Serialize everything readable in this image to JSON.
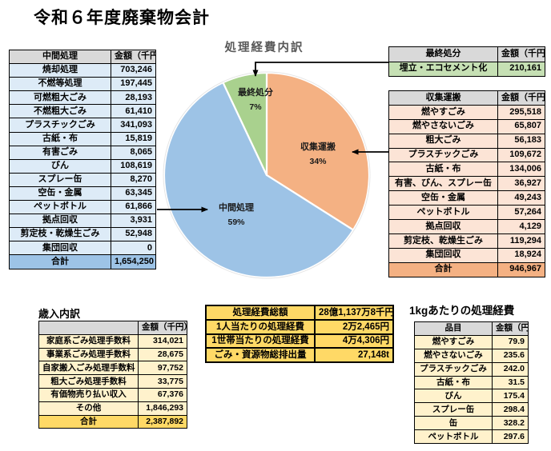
{
  "title": "令和６年度廃棄物会計",
  "chart_data": {
    "type": "pie",
    "title": "処理経費内訳",
    "start_angle_deg": 0,
    "direction": "clockwise",
    "unit": "千円",
    "slices": [
      {
        "key": "collection-transport",
        "label": "収集運搬",
        "percent": 34,
        "percent_label": "34%",
        "value_thousand_yen": 946967,
        "color": "#F4B183"
      },
      {
        "key": "intermediate-processing",
        "label": "中間処理",
        "percent": 59,
        "percent_label": "59%",
        "value_thousand_yen": 1654250,
        "color": "#9DC3E6"
      },
      {
        "key": "final-disposal",
        "label": "最終処分",
        "percent": 7,
        "percent_label": "7%",
        "value_thousand_yen": 210161,
        "color": "#A9D18E"
      }
    ]
  },
  "tables": {
    "chukan": {
      "header": [
        "中間処理",
        "金額（千円）"
      ],
      "rows": [
        [
          "焼却処理",
          "703,246"
        ],
        [
          "不燃等処理",
          "197,445"
        ],
        [
          "可燃粗大ごみ",
          "28,193"
        ],
        [
          "不燃粗大ごみ",
          "61,410"
        ],
        [
          "プラスチックごみ",
          "341,093"
        ],
        [
          "古紙・布",
          "15,819"
        ],
        [
          "有害ごみ",
          "8,065"
        ],
        [
          "びん",
          "108,619"
        ],
        [
          "スプレー缶",
          "8,270"
        ],
        [
          "空缶・金属",
          "63,345"
        ],
        [
          "ペットボトル",
          "61,866"
        ],
        [
          "拠点回収",
          "3,931"
        ],
        [
          "剪定枝・乾燥生ごみ",
          "52,948"
        ],
        [
          "集団回収",
          "0"
        ]
      ],
      "total": [
        "合計",
        "1,654,250"
      ]
    },
    "saishu": {
      "header": [
        "最終処分",
        "金額（千円）"
      ],
      "rows": [
        [
          "埋立・エコセメント化",
          "210,161"
        ]
      ]
    },
    "shushu": {
      "header": [
        "収集運搬",
        "金額（千円）"
      ],
      "rows": [
        [
          "燃やすごみ",
          "295,518"
        ],
        [
          "燃やさないごみ",
          "65,807"
        ],
        [
          "粗大ごみ",
          "56,183"
        ],
        [
          "プラスチックごみ",
          "109,672"
        ],
        [
          "古紙・布",
          "134,006"
        ],
        [
          "有害、びん、スプレー缶",
          "36,927"
        ],
        [
          "空缶・金属",
          "49,243"
        ],
        [
          "ペットボトル",
          "57,264"
        ],
        [
          "拠点回収",
          "4,129"
        ],
        [
          "剪定枝、乾燥生ごみ",
          "119,294"
        ],
        [
          "集団回収",
          "18,924"
        ]
      ],
      "total": [
        "合計",
        "946,967"
      ]
    },
    "sainyu": {
      "caption": "歳入内訳",
      "header": [
        "",
        "金額（千円）"
      ],
      "rows": [
        [
          "家庭系ごみ処理手数料",
          "314,021"
        ],
        [
          "事業系ごみ処理手数料",
          "28,675"
        ],
        [
          "自家搬入ごみ処理手数料",
          "97,752"
        ],
        [
          "粗大ごみ処理手数料",
          "33,775"
        ],
        [
          "有価物売り払い収入",
          "67,376"
        ],
        [
          "その他",
          "1,846,293"
        ]
      ],
      "total": [
        "合計",
        "2,387,892"
      ]
    },
    "summary": {
      "rows": [
        [
          "処理経費総額",
          "28億1,137万8千円"
        ],
        [
          "1人当たりの処理経費",
          "2万2,465円"
        ],
        [
          "1世帯当たりの処理経費",
          "4万4,306円"
        ],
        [
          "ごみ・資源物総排出量",
          "27,148t"
        ]
      ]
    },
    "perkg": {
      "caption": "1kgあたりの処理経費",
      "header": [
        "品目",
        "金額（円）"
      ],
      "rows": [
        [
          "燃やすごみ",
          "79.9"
        ],
        [
          "燃やさないごみ",
          "235.6"
        ],
        [
          "プラスチックごみ",
          "242.0"
        ],
        [
          "古紙・布",
          "31.5"
        ],
        [
          "びん",
          "175.4"
        ],
        [
          "スプレー缶",
          "298.4"
        ],
        [
          "缶",
          "328.2"
        ],
        [
          "ペットボトル",
          "297.6"
        ]
      ]
    }
  },
  "colors": {
    "header_gray": "#D9D9D9",
    "blue_row": "#DDEBF7",
    "blue_total": "#9DC3E6",
    "green_row": "#C6E0B4",
    "orange_row": "#FCE4D6",
    "orange_total": "#F4B183",
    "yellow_row": "#FFF2CC",
    "gold": "#FFD966",
    "pie_title_gray": "#595959"
  }
}
